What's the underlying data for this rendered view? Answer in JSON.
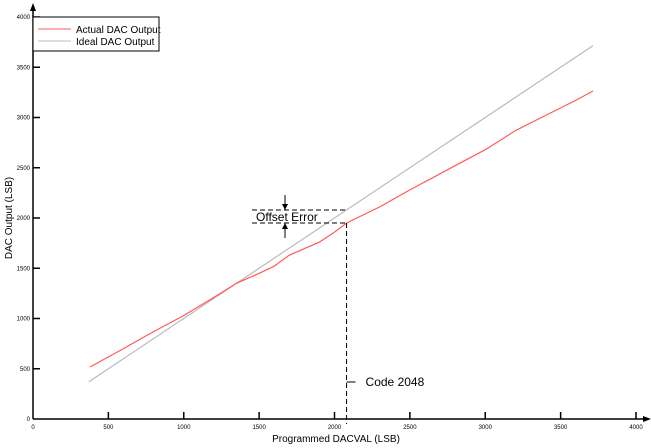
{
  "chart_data": {
    "type": "line",
    "title": "",
    "xlabel": "Programmed DACVAL (LSB)",
    "ylabel": "DAC Output (LSB)",
    "xlim": [
      0,
      4000
    ],
    "ylim": [
      0,
      4000
    ],
    "xticks": [
      "0",
      "500",
      "1000",
      "1500",
      "2000",
      "2500",
      "3000",
      "3500",
      "4000"
    ],
    "yticks": [
      "0",
      "500",
      "1000",
      "1500",
      "2000",
      "2500",
      "3000",
      "3500",
      "4000"
    ],
    "grid": false,
    "legend": "top-left",
    "series": [
      {
        "name": "Actual DAC Output",
        "color": "#ff5a5a",
        "x": [
          378,
          600,
          800,
          1000,
          1200,
          1350,
          1500,
          1600,
          1700,
          1900,
          2000,
          2080,
          2300,
          2500,
          2700,
          2800,
          3000,
          3200,
          3400,
          3600,
          3715
        ],
        "y": [
          517,
          700,
          870,
          1030,
          1210,
          1350,
          1450,
          1520,
          1630,
          1760,
          1860,
          1950,
          2110,
          2280,
          2440,
          2520,
          2680,
          2870,
          3020,
          3170,
          3264
        ]
      },
      {
        "name": "Ideal DAC Output",
        "color": "#bbbbbb",
        "x": [
          370,
          3715
        ],
        "y": [
          370,
          3715
        ]
      }
    ],
    "annotations": {
      "offset_error": {
        "text": "Offset Error",
        "x": 2080,
        "y_ideal": 2080,
        "y_actual": 1950
      },
      "code": {
        "text": "Code 2048",
        "x": 2080
      }
    }
  }
}
